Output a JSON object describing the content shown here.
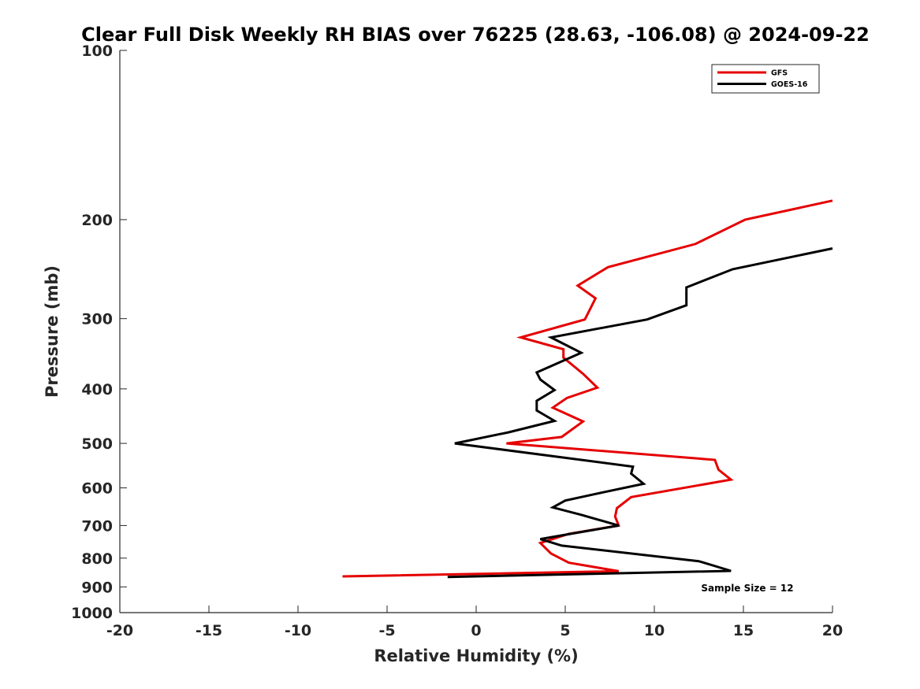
{
  "chart_data": {
    "type": "line",
    "title": "Clear Full Disk Weekly RH BIAS over 76225 (28.63, -106.08) @ 2024-09-22",
    "xlabel": "Relative Humidity (%)",
    "ylabel": "Pressure (mb)",
    "xlim": [
      -20,
      20
    ],
    "ylim": [
      100,
      1000
    ],
    "yscale": "log",
    "y_reversed": true,
    "x_ticks": [
      -20,
      -15,
      -10,
      -5,
      0,
      5,
      10,
      15,
      20
    ],
    "y_ticks": [
      100,
      200,
      300,
      400,
      500,
      600,
      700,
      800,
      900,
      1000
    ],
    "grid": false,
    "legend_position": "top-right",
    "annotation": "Sample Size = 12",
    "series": [
      {
        "name": "GFS",
        "color": "#e50000",
        "points": [
          [
            20,
            185
          ],
          [
            15.1,
            200
          ],
          [
            12.3,
            221
          ],
          [
            7.4,
            243
          ],
          [
            5.7,
            262
          ],
          [
            6.7,
            276
          ],
          [
            6.1,
            301
          ],
          [
            2.5,
            324
          ],
          [
            4.9,
            340
          ],
          [
            4.9,
            352
          ],
          [
            6.0,
            376
          ],
          [
            6.8,
            398
          ],
          [
            5.1,
            415
          ],
          [
            4.3,
            432
          ],
          [
            6.0,
            457
          ],
          [
            4.8,
            487
          ],
          [
            1.7,
            500
          ],
          [
            13.4,
            535
          ],
          [
            13.6,
            557
          ],
          [
            14.3,
            580
          ],
          [
            8.7,
            623
          ],
          [
            7.9,
            652
          ],
          [
            7.8,
            675
          ],
          [
            8.0,
            700
          ],
          [
            5.2,
            724
          ],
          [
            3.6,
            752
          ],
          [
            4.2,
            785
          ],
          [
            5.2,
            815
          ],
          [
            8.0,
            844
          ],
          [
            -7.5,
            862
          ]
        ]
      },
      {
        "name": "GOES-16",
        "color": "#000000",
        "points": [
          [
            20,
            225
          ],
          [
            14.4,
            245
          ],
          [
            11.8,
            264
          ],
          [
            11.8,
            284
          ],
          [
            9.6,
            301
          ],
          [
            4.2,
            324
          ],
          [
            5.9,
            345
          ],
          [
            3.4,
            374
          ],
          [
            3.6,
            385
          ],
          [
            4.4,
            402
          ],
          [
            3.4,
            420
          ],
          [
            3.4,
            437
          ],
          [
            4.4,
            456
          ],
          [
            1.8,
            478
          ],
          [
            -1.2,
            500
          ],
          [
            8.8,
            550
          ],
          [
            8.7,
            566
          ],
          [
            9.4,
            590
          ],
          [
            6.7,
            615
          ],
          [
            5.0,
            632
          ],
          [
            4.3,
            650
          ],
          [
            5.9,
            670
          ],
          [
            8.0,
            700
          ],
          [
            3.6,
            740
          ],
          [
            4.8,
            760
          ],
          [
            12.5,
            810
          ],
          [
            14.3,
            843
          ],
          [
            -1.6,
            864
          ]
        ]
      }
    ]
  }
}
